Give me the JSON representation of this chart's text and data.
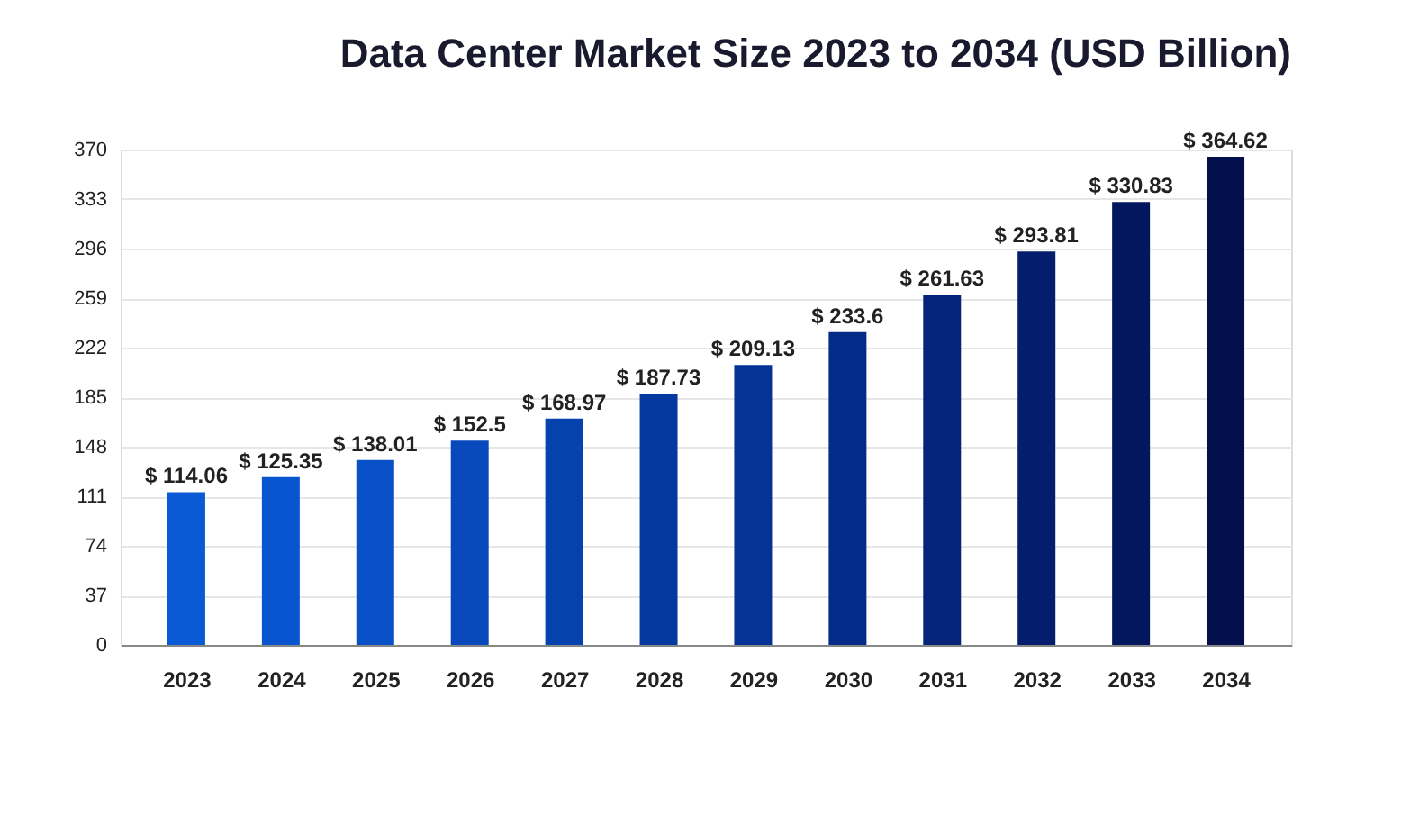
{
  "chart_data": {
    "type": "bar",
    "title": "Data Center Market Size 2023 to 2034 (USD Billion)",
    "categories": [
      "2023",
      "2024",
      "2025",
      "2026",
      "2027",
      "2028",
      "2029",
      "2030",
      "2031",
      "2032",
      "2033",
      "2034"
    ],
    "values": [
      114.06,
      125.35,
      138.01,
      152.5,
      168.97,
      187.73,
      209.13,
      233.6,
      261.63,
      293.81,
      330.83,
      364.62
    ],
    "value_labels": [
      "$ 114.06",
      "$ 125.35",
      "$ 138.01",
      "$ 152.5",
      "$ 168.97",
      "$ 187.73",
      "$ 209.13",
      "$ 233.6",
      "$ 261.63",
      "$ 293.81",
      "$ 330.83",
      "$ 364.62"
    ],
    "colors": [
      "#0a5ad6",
      "#0955cf",
      "#0850c6",
      "#0749bb",
      "#0642ae",
      "#0539a0",
      "#053295",
      "#052b88",
      "#05247a",
      "#041d6c",
      "#03175e",
      "#020f4c"
    ],
    "ylim": [
      0,
      370
    ],
    "yticks": [
      0,
      37,
      74,
      111,
      148,
      185,
      222,
      259,
      296,
      333,
      370
    ],
    "grid": "y"
  }
}
